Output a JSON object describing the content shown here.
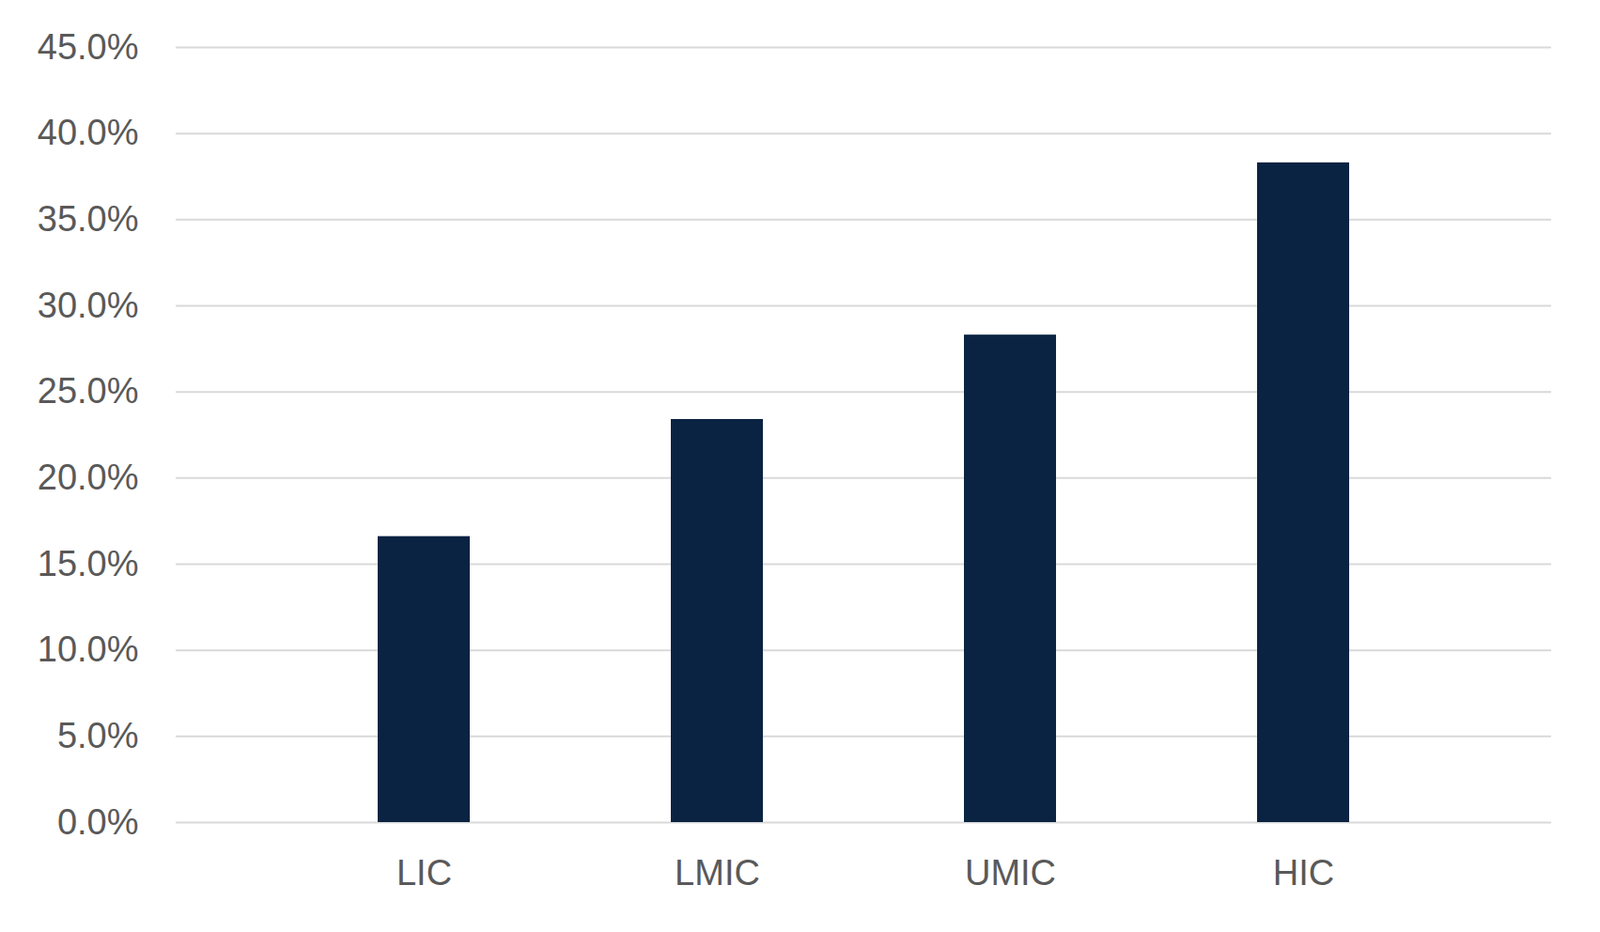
{
  "chart_data": {
    "type": "bar",
    "categories": [
      "LIC",
      "LMIC",
      "UMIC",
      "HIC"
    ],
    "values": [
      16.6,
      23.4,
      28.3,
      38.3
    ],
    "color": "#0a2342",
    "ylim": [
      0,
      45
    ],
    "yticks": [
      {
        "value": 0,
        "label": "0.0%"
      },
      {
        "value": 5,
        "label": "5.0%"
      },
      {
        "value": 10,
        "label": "10.0%"
      },
      {
        "value": 15,
        "label": "15.0%"
      },
      {
        "value": 20,
        "label": "20.0%"
      },
      {
        "value": 25,
        "label": "25.0%"
      },
      {
        "value": 30,
        "label": "30.0%"
      },
      {
        "value": 35,
        "label": "35.0%"
      },
      {
        "value": 40,
        "label": "40.0%"
      },
      {
        "value": 45,
        "label": "45.0%"
      }
    ],
    "grid": true
  }
}
